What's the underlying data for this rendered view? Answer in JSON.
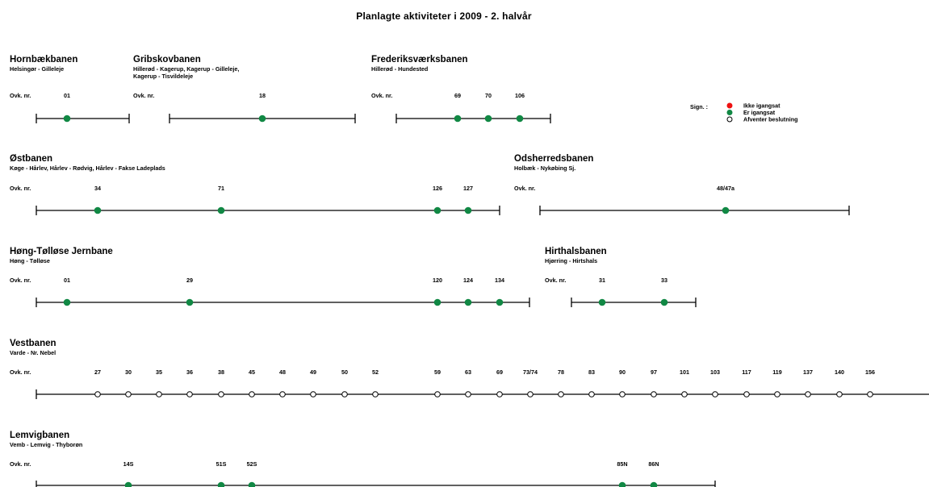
{
  "title": "Planlagte aktiviteter i 2009 - 2. halvår",
  "legend": {
    "label": "Sign. :",
    "items": [
      {
        "status": "ikke",
        "text": "Ikke igangsat"
      },
      {
        "status": "er",
        "text": "Er igangsat"
      },
      {
        "status": "afventer",
        "text": "Afventer beslutning"
      }
    ]
  },
  "status_colors": {
    "ikke": "#ee1111",
    "er": "#118844",
    "afventer": "#ffffff"
  },
  "ovk_label": "Ovk. nr.",
  "lines": [
    {
      "id": "hornbaekbanen",
      "name": "Hornbækbanen",
      "subtitle": [
        "Helsingør - Gilleleje"
      ],
      "ovk": [
        {
          "label": "01",
          "status": "er"
        }
      ]
    },
    {
      "id": "gribskovbanen",
      "name": "Gribskovbanen",
      "subtitle": [
        "Hillerød - Kagerup, Kagerup - Gilleleje,",
        "Kagerup - Tisvildeleje"
      ],
      "ovk": [
        {
          "label": "18",
          "status": "er"
        }
      ]
    },
    {
      "id": "frederiksvaerksbanen",
      "name": "Frederiksværksbanen",
      "subtitle": [
        "Hillerød - Hundested"
      ],
      "ovk": [
        {
          "label": "69",
          "status": "er"
        },
        {
          "label": "70",
          "status": "er"
        },
        {
          "label": "106",
          "status": "er"
        }
      ]
    },
    {
      "id": "ostbanen",
      "name": "Østbanen",
      "subtitle": [
        "Køge - Hårlev, Hårlev - Rødvig, Hårlev - Fakse Ladeplads"
      ],
      "ovk": [
        {
          "label": "34",
          "status": "er"
        },
        {
          "label": "71",
          "status": "er"
        },
        {
          "label": "126",
          "status": "er"
        },
        {
          "label": "127",
          "status": "er"
        }
      ]
    },
    {
      "id": "odsherredsbanen",
      "name": "Odsherredsbanen",
      "subtitle": [
        "Holbæk - Nykøbing Sj."
      ],
      "ovk": [
        {
          "label": "48/47a",
          "status": "er"
        }
      ]
    },
    {
      "id": "hang-tollose",
      "name": "Høng-Tølløse Jernbane",
      "subtitle": [
        "Høng - Tølløse"
      ],
      "ovk": [
        {
          "label": "01",
          "status": "er"
        },
        {
          "label": "29",
          "status": "er"
        },
        {
          "label": "120",
          "status": "er"
        },
        {
          "label": "124",
          "status": "er"
        },
        {
          "label": "134",
          "status": "er"
        }
      ]
    },
    {
      "id": "hirtshalsbanen",
      "name": "Hirthalsbanen",
      "subtitle": [
        "Hjørring - Hirtshals"
      ],
      "ovk": [
        {
          "label": "31",
          "status": "er"
        },
        {
          "label": "33",
          "status": "er"
        }
      ]
    },
    {
      "id": "vestbanen",
      "name": "Vestbanen",
      "subtitle": [
        "Varde - Nr. Nebel"
      ],
      "ovk": [
        {
          "label": "27",
          "status": "afventer"
        },
        {
          "label": "30",
          "status": "afventer"
        },
        {
          "label": "35",
          "status": "afventer"
        },
        {
          "label": "36",
          "status": "afventer"
        },
        {
          "label": "38",
          "status": "afventer"
        },
        {
          "label": "45",
          "status": "afventer"
        },
        {
          "label": "48",
          "status": "afventer"
        },
        {
          "label": "49",
          "status": "afventer"
        },
        {
          "label": "50",
          "status": "afventer"
        },
        {
          "label": "52",
          "status": "afventer"
        },
        {
          "label": "59",
          "status": "afventer"
        },
        {
          "label": "63",
          "status": "afventer"
        },
        {
          "label": "69",
          "status": "afventer"
        },
        {
          "label": "73/74",
          "status": "afventer"
        },
        {
          "label": "78",
          "status": "afventer"
        },
        {
          "label": "83",
          "status": "afventer"
        },
        {
          "label": "90",
          "status": "afventer"
        },
        {
          "label": "97",
          "status": "afventer"
        },
        {
          "label": "101",
          "status": "afventer"
        },
        {
          "label": "103",
          "status": "afventer"
        },
        {
          "label": "117",
          "status": "afventer"
        },
        {
          "label": "119",
          "status": "afventer"
        },
        {
          "label": "137",
          "status": "afventer"
        },
        {
          "label": "140",
          "status": "afventer"
        },
        {
          "label": "156",
          "status": "afventer"
        }
      ]
    },
    {
      "id": "lemvigbanen",
      "name": "Lemvigbanen",
      "subtitle": [
        "Vemb - Lemvig - Thyborøn"
      ],
      "ovk": [
        {
          "label": "14S",
          "status": "er"
        },
        {
          "label": "51S",
          "status": "er"
        },
        {
          "label": "52S",
          "status": "er"
        },
        {
          "label": "85N",
          "status": "er"
        },
        {
          "label": "86N",
          "status": "er"
        }
      ]
    }
  ]
}
